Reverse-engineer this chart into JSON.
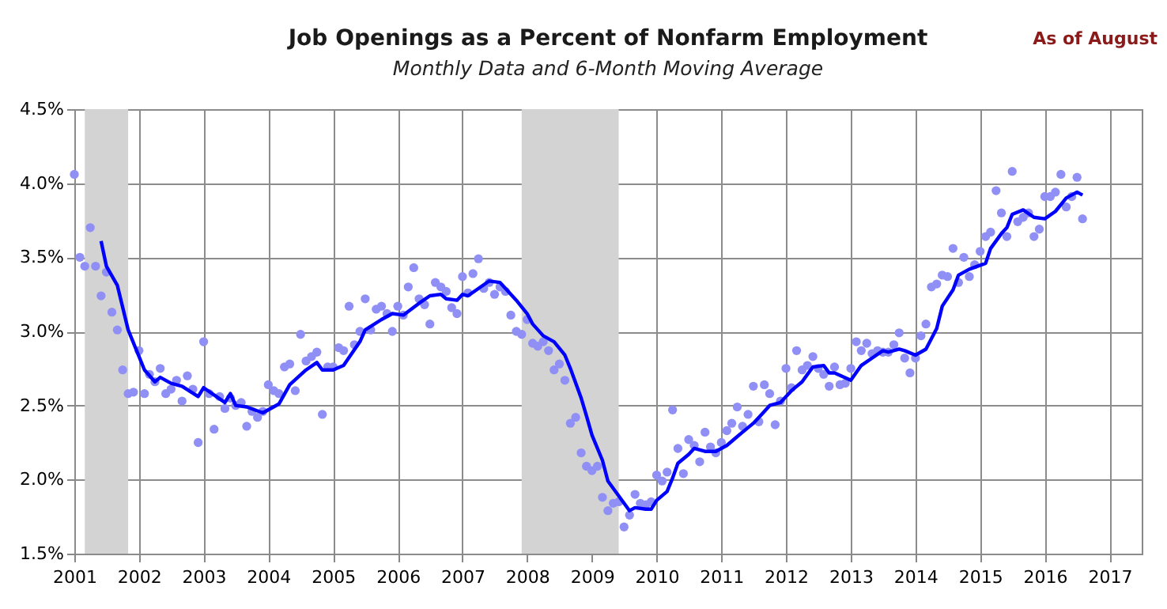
{
  "chart_data": {
    "type": "scatter",
    "title": "Job Openings as a Percent of Nonfarm Employment",
    "subtitle": "Monthly Data and 6-Month Moving Average",
    "annotations": [
      "As of August"
    ],
    "xlim": [
      "2001-01",
      "2017-07"
    ],
    "xticks": [
      "2001",
      "2002",
      "2003",
      "2004",
      "2005",
      "2006",
      "2007",
      "2008",
      "2009",
      "2010",
      "2011",
      "2012",
      "2013",
      "2014",
      "2015",
      "2016",
      "2017"
    ],
    "ylim": [
      1.5,
      4.5
    ],
    "yticks": [
      {
        "value": 1.5,
        "label": "1.5%"
      },
      {
        "value": 2.0,
        "label": "2.0%"
      },
      {
        "value": 2.5,
        "label": "2.5%"
      },
      {
        "value": 3.0,
        "label": "3.0%"
      },
      {
        "value": 3.5,
        "label": "3.5%"
      },
      {
        "value": 4.0,
        "label": "4.0%"
      },
      {
        "value": 4.5,
        "label": "4.5%"
      }
    ],
    "grid": true,
    "bands": [
      {
        "axis": "x",
        "from": "2001-03",
        "to": "2001-11",
        "color": "#d3d3d3"
      },
      {
        "axis": "x",
        "from": "2007-12",
        "to": "2009-06",
        "color": "#d3d3d3"
      }
    ],
    "series": [
      {
        "marker": "circle",
        "color": "#8f8ff5",
        "x": [
          "2001-01",
          "2001-02",
          "2001-03",
          "2001-04",
          "2001-05",
          "2001-06",
          "2001-07",
          "2001-08",
          "2001-09",
          "2001-10",
          "2001-11",
          "2001-12",
          "2002-01",
          "2002-02",
          "2002-03",
          "2002-04",
          "2002-05",
          "2002-06",
          "2002-07",
          "2002-08",
          "2002-09",
          "2002-10",
          "2002-11",
          "2002-12",
          "2003-01",
          "2003-02",
          "2003-03",
          "2003-04",
          "2003-05",
          "2003-06",
          "2003-07",
          "2003-08",
          "2003-09",
          "2003-10",
          "2003-11",
          "2003-12",
          "2004-01",
          "2004-02",
          "2004-03",
          "2004-04",
          "2004-05",
          "2004-06",
          "2004-07",
          "2004-08",
          "2004-09",
          "2004-10",
          "2004-11",
          "2004-12",
          "2005-01",
          "2005-02",
          "2005-03",
          "2005-04",
          "2005-05",
          "2005-06",
          "2005-07",
          "2005-08",
          "2005-09",
          "2005-10",
          "2005-11",
          "2005-12",
          "2006-01",
          "2006-02",
          "2006-03",
          "2006-04",
          "2006-05",
          "2006-06",
          "2006-07",
          "2006-08",
          "2006-09",
          "2006-10",
          "2006-11",
          "2006-12",
          "2007-01",
          "2007-02",
          "2007-03",
          "2007-04",
          "2007-05",
          "2007-06",
          "2007-07",
          "2007-08",
          "2007-09",
          "2007-10",
          "2007-11",
          "2007-12",
          "2008-01",
          "2008-02",
          "2008-03",
          "2008-04",
          "2008-05",
          "2008-06",
          "2008-07",
          "2008-08",
          "2008-09",
          "2008-10",
          "2008-11",
          "2008-12",
          "2009-01",
          "2009-02",
          "2009-03",
          "2009-04",
          "2009-05",
          "2009-06",
          "2009-07",
          "2009-08",
          "2009-09",
          "2009-10",
          "2009-11",
          "2009-12",
          "2010-01",
          "2010-02",
          "2010-03",
          "2010-04",
          "2010-05",
          "2010-06",
          "2010-07",
          "2010-08",
          "2010-09",
          "2010-10",
          "2010-11",
          "2010-12",
          "2011-01",
          "2011-02",
          "2011-03",
          "2011-04",
          "2011-05",
          "2011-06",
          "2011-07",
          "2011-08",
          "2011-09",
          "2011-10",
          "2011-11",
          "2011-12",
          "2012-01",
          "2012-02",
          "2012-03",
          "2012-04",
          "2012-05",
          "2012-06",
          "2012-07",
          "2012-08",
          "2012-09",
          "2012-10",
          "2012-11",
          "2012-12",
          "2013-01",
          "2013-02",
          "2013-03",
          "2013-04",
          "2013-05",
          "2013-06",
          "2013-07",
          "2013-08",
          "2013-09",
          "2013-10",
          "2013-11",
          "2013-12",
          "2014-01",
          "2014-02",
          "2014-03",
          "2014-04",
          "2014-05",
          "2014-06",
          "2014-07",
          "2014-08",
          "2014-09",
          "2014-10",
          "2014-11",
          "2014-12",
          "2015-01",
          "2015-02",
          "2015-03",
          "2015-04",
          "2015-05",
          "2015-06",
          "2015-07",
          "2015-08",
          "2015-09",
          "2015-10",
          "2015-11",
          "2015-12",
          "2016-01",
          "2016-02",
          "2016-03",
          "2016-04",
          "2016-05",
          "2016-06",
          "2016-07",
          "2016-08"
        ],
        "values": [
          4.06,
          3.5,
          3.44,
          3.7,
          3.44,
          3.24,
          3.4,
          3.13,
          3.01,
          2.74,
          2.58,
          2.59,
          2.87,
          2.58,
          2.71,
          2.66,
          2.75,
          2.58,
          2.61,
          2.67,
          2.53,
          2.7,
          2.61,
          2.25,
          2.93,
          2.58,
          2.34,
          2.56,
          2.48,
          2.55,
          2.5,
          2.52,
          2.36,
          2.46,
          2.42,
          2.46,
          2.64,
          2.6,
          2.58,
          2.76,
          2.78,
          2.6,
          2.98,
          2.8,
          2.83,
          2.86,
          2.44,
          2.76,
          2.76,
          2.89,
          2.87,
          3.17,
          2.91,
          3.0,
          3.22,
          3.01,
          3.15,
          3.17,
          3.12,
          3.0,
          3.17,
          3.11,
          3.3,
          3.43,
          3.22,
          3.18,
          3.05,
          3.33,
          3.3,
          3.27,
          3.16,
          3.12,
          3.37,
          3.26,
          3.39,
          3.49,
          3.29,
          3.33,
          3.25,
          3.3,
          3.27,
          3.11,
          3.0,
          2.98,
          3.08,
          2.92,
          2.9,
          2.93,
          2.87,
          2.74,
          2.78,
          2.67,
          2.38,
          2.42,
          2.18,
          2.09,
          2.06,
          2.09,
          1.88,
          1.79,
          1.84,
          1.85,
          1.68,
          1.76,
          1.9,
          1.84,
          1.83,
          1.85,
          2.03,
          1.99,
          2.05,
          2.47,
          2.21,
          2.04,
          2.27,
          2.23,
          2.12,
          2.32,
          2.22,
          2.18,
          2.25,
          2.33,
          2.38,
          2.49,
          2.36,
          2.44,
          2.63,
          2.39,
          2.64,
          2.58,
          2.37,
          2.53,
          2.75,
          2.62,
          2.87,
          2.74,
          2.77,
          2.83,
          2.75,
          2.71,
          2.63,
          2.76,
          2.64,
          2.65,
          2.75,
          2.93,
          2.87,
          2.92,
          2.85,
          2.87,
          2.86,
          2.86,
          2.91,
          2.99,
          2.82,
          2.72,
          2.82,
          2.97,
          3.05,
          3.3,
          3.32,
          3.38,
          3.37,
          3.56,
          3.33,
          3.5,
          3.37,
          3.45,
          3.54,
          3.64,
          3.67,
          3.95,
          3.8,
          3.64,
          4.08,
          3.74,
          3.77,
          3.8,
          3.64,
          3.69,
          3.91,
          3.91,
          3.94,
          4.06,
          3.84,
          3.91,
          4.04,
          3.76
        ]
      },
      {
        "type": "line",
        "marker": "none",
        "line_style": "solid",
        "color": "#0000ff",
        "x": [
          "2001-06",
          "2001-07",
          "2001-09",
          "2001-11",
          "2002-02",
          "2002-04",
          "2002-05",
          "2002-07",
          "2002-09",
          "2002-12",
          "2003-01",
          "2003-05",
          "2003-06",
          "2003-07",
          "2003-09",
          "2003-12",
          "2004-03",
          "2004-05",
          "2004-08",
          "2004-10",
          "2004-11",
          "2005-01",
          "2005-03",
          "2005-06",
          "2005-07",
          "2005-10",
          "2005-12",
          "2006-02",
          "2006-05",
          "2006-07",
          "2006-09",
          "2006-10",
          "2006-12",
          "2007-01",
          "2007-02",
          "2007-06",
          "2007-08",
          "2007-09",
          "2007-11",
          "2008-01",
          "2008-02",
          "2008-04",
          "2008-06",
          "2008-08",
          "2008-09",
          "2008-11",
          "2008-12",
          "2009-01",
          "2009-03",
          "2009-04",
          "2009-06",
          "2009-08",
          "2009-09",
          "2009-11",
          "2009-12",
          "2010-01",
          "2010-03",
          "2010-04",
          "2010-05",
          "2010-07",
          "2010-08",
          "2010-10",
          "2010-12",
          "2011-02",
          "2011-04",
          "2011-05",
          "2011-07",
          "2011-09",
          "2011-10",
          "2011-12",
          "2012-02",
          "2012-04",
          "2012-06",
          "2012-08",
          "2012-09",
          "2012-10",
          "2013-01",
          "2013-03",
          "2013-05",
          "2013-07",
          "2013-08",
          "2013-10",
          "2013-11",
          "2014-01",
          "2014-03",
          "2014-05",
          "2014-06",
          "2014-08",
          "2014-09",
          "2014-11",
          "2015-02",
          "2015-03",
          "2015-05",
          "2015-06",
          "2015-07",
          "2015-09",
          "2015-11",
          "2016-01",
          "2016-03",
          "2016-05",
          "2016-07",
          "2016-08"
        ],
        "values": [
          3.61,
          3.44,
          3.31,
          3.01,
          2.74,
          2.66,
          2.69,
          2.65,
          2.63,
          2.56,
          2.62,
          2.52,
          2.58,
          2.5,
          2.49,
          2.45,
          2.51,
          2.64,
          2.74,
          2.79,
          2.74,
          2.74,
          2.77,
          2.93,
          3.01,
          3.08,
          3.12,
          3.11,
          3.19,
          3.24,
          3.25,
          3.22,
          3.21,
          3.25,
          3.24,
          3.34,
          3.33,
          3.29,
          3.21,
          3.12,
          3.05,
          2.97,
          2.93,
          2.84,
          2.75,
          2.55,
          2.43,
          2.3,
          2.13,
          1.99,
          1.89,
          1.79,
          1.81,
          1.8,
          1.8,
          1.86,
          1.92,
          2.01,
          2.11,
          2.17,
          2.21,
          2.19,
          2.19,
          2.23,
          2.29,
          2.32,
          2.38,
          2.46,
          2.5,
          2.52,
          2.6,
          2.66,
          2.76,
          2.77,
          2.72,
          2.72,
          2.67,
          2.77,
          2.82,
          2.87,
          2.86,
          2.88,
          2.87,
          2.84,
          2.88,
          3.02,
          3.17,
          3.28,
          3.38,
          3.42,
          3.46,
          3.56,
          3.66,
          3.7,
          3.79,
          3.82,
          3.77,
          3.76,
          3.81,
          3.9,
          3.94,
          3.92
        ]
      }
    ]
  }
}
